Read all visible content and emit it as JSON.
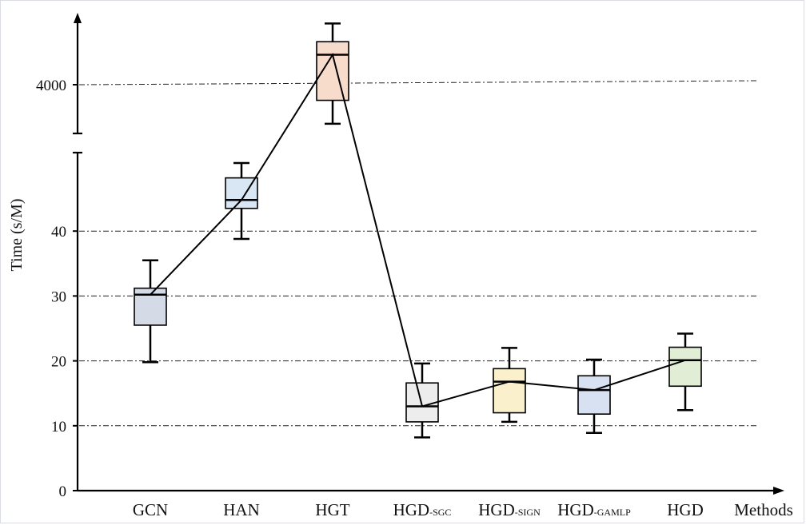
{
  "chart_data": {
    "type": "box",
    "xlabel": "Methods",
    "ylabel": "Time (s/M)",
    "y_axis_broken": true,
    "y_ticks_lower": [
      0,
      10,
      20,
      30,
      40
    ],
    "y_ticks_upper": [
      4000
    ],
    "grid": "horizontal dash-dot",
    "categories": [
      {
        "main": "GCN",
        "sub": ""
      },
      {
        "main": "HAN",
        "sub": ""
      },
      {
        "main": "HGT",
        "sub": ""
      },
      {
        "main": "HGD",
        "sub": "-SGC"
      },
      {
        "main": "HGD",
        "sub": "-SIGN"
      },
      {
        "main": "HGD",
        "sub": "-GAMLP"
      },
      {
        "main": "HGD",
        "sub": ""
      }
    ],
    "boxes": [
      {
        "segment": "lower",
        "min": 19.8,
        "q1": 25.5,
        "median": 30.2,
        "q3": 31.2,
        "max": 35.5,
        "color": "#d4dae6"
      },
      {
        "segment": "lower",
        "min": 38.8,
        "q1": 43.5,
        "median": 44.8,
        "q3": 48.2,
        "max": 50.5,
        "color": "#d9e6f3"
      },
      {
        "segment": "upper",
        "min": 3700,
        "q1": 3880,
        "median": 4230,
        "q3": 4330,
        "max": 4470,
        "color": "#f8dccb"
      },
      {
        "segment": "lower",
        "min": 8.2,
        "q1": 10.6,
        "median": 13.0,
        "q3": 16.6,
        "max": 19.6,
        "color": "#ededed"
      },
      {
        "segment": "lower",
        "min": 10.6,
        "q1": 12.0,
        "median": 16.8,
        "q3": 18.8,
        "max": 22.0,
        "color": "#fbf0cc"
      },
      {
        "segment": "lower",
        "min": 8.9,
        "q1": 11.8,
        "median": 15.5,
        "q3": 17.7,
        "max": 20.2,
        "color": "#d8e1f2"
      },
      {
        "segment": "lower",
        "min": 12.4,
        "q1": 16.1,
        "median": 20.1,
        "q3": 22.1,
        "max": 24.2,
        "color": "#e2edd5"
      }
    ],
    "median_line": true,
    "colors": {
      "stroke": "#000000",
      "grid": "#000000"
    }
  }
}
